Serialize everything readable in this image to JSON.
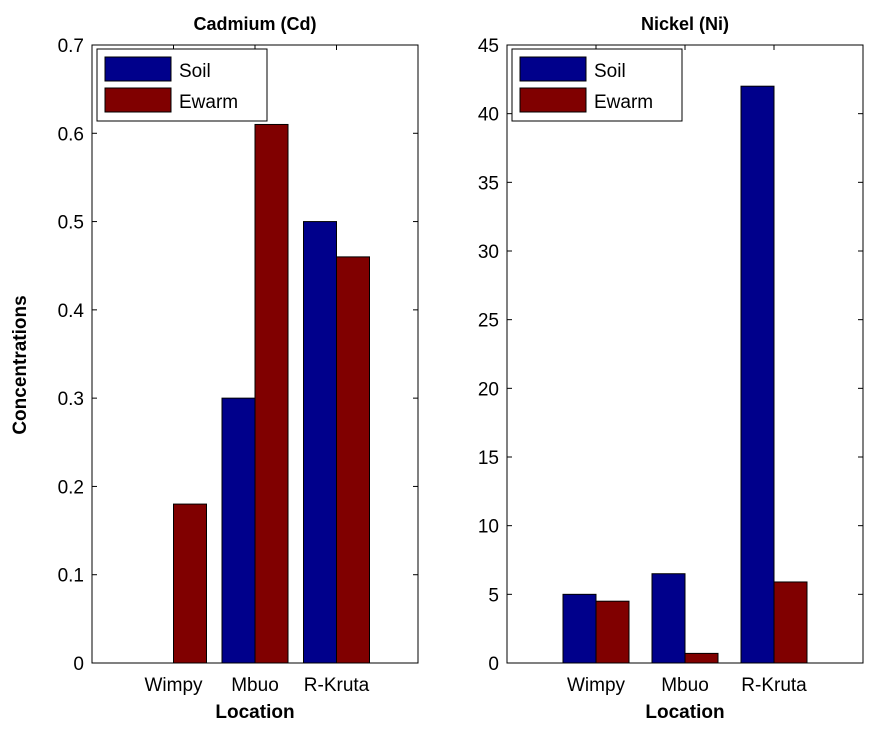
{
  "shared": {
    "ylabel": "Concentrations",
    "colors": {
      "Soil": "#00008b",
      "Ewarm": "#800000"
    }
  },
  "chart_data": [
    {
      "type": "bar",
      "title": "Cadmium (Cd)",
      "xlabel": "Location",
      "ylabel": "Concentrations",
      "categories": [
        "Wimpy",
        "Mbuo",
        "R-Kruta"
      ],
      "series": [
        {
          "name": "Soil",
          "values": [
            0,
            0.3,
            0.5
          ]
        },
        {
          "name": "Ewarm",
          "values": [
            0.18,
            0.61,
            0.46
          ]
        }
      ],
      "ylim": [
        0,
        0.7
      ],
      "yticks": [
        0,
        0.1,
        0.2,
        0.3,
        0.4,
        0.5,
        0.6,
        0.7
      ],
      "ytick_labels": [
        "0",
        "0.1",
        "0.2",
        "0.3",
        "0.4",
        "0.5",
        "0.6",
        "0.7"
      ],
      "legend": "top-left",
      "grid": false
    },
    {
      "type": "bar",
      "title": "Nickel (Ni)",
      "xlabel": "Location",
      "ylabel": "",
      "categories": [
        "Wimpy",
        "Mbuo",
        "R-Kruta"
      ],
      "series": [
        {
          "name": "Soil",
          "values": [
            5,
            6.5,
            42
          ]
        },
        {
          "name": "Ewarm",
          "values": [
            4.5,
            0.7,
            5.9
          ]
        }
      ],
      "ylim": [
        0,
        45
      ],
      "yticks": [
        0,
        5,
        10,
        15,
        20,
        25,
        30,
        35,
        40,
        45
      ],
      "ytick_labels": [
        "0",
        "5",
        "10",
        "15",
        "20",
        "25",
        "30",
        "35",
        "40",
        "45"
      ],
      "legend": "top-left",
      "grid": false
    }
  ]
}
